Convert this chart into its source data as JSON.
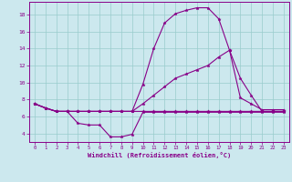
{
  "xlabel": "Windchill (Refroidissement éolien,°C)",
  "background_color": "#cce8ee",
  "line_color": "#880088",
  "grid_color": "#99cccc",
  "xlim": [
    -0.5,
    23.5
  ],
  "ylim": [
    3.0,
    19.5
  ],
  "xticks": [
    0,
    1,
    2,
    3,
    4,
    5,
    6,
    7,
    8,
    9,
    10,
    11,
    12,
    13,
    14,
    15,
    16,
    17,
    18,
    19,
    20,
    21,
    22,
    23
  ],
  "yticks": [
    4,
    6,
    8,
    10,
    12,
    14,
    16,
    18
  ],
  "lines": [
    {
      "x": [
        0,
        1,
        2,
        3,
        4,
        5,
        6,
        7,
        8,
        9,
        10,
        11,
        12,
        13,
        14,
        15,
        16,
        17,
        18,
        19,
        20,
        21,
        22,
        23
      ],
      "y": [
        7.5,
        7.0,
        6.6,
        6.6,
        5.2,
        5.0,
        5.0,
        3.6,
        3.6,
        3.9,
        6.5,
        6.5,
        6.5,
        6.5,
        6.5,
        6.5,
        6.5,
        6.5,
        6.5,
        6.5,
        6.5,
        6.5,
        6.5,
        6.5
      ]
    },
    {
      "x": [
        0,
        1,
        2,
        3,
        4,
        5,
        6,
        7,
        8,
        9,
        10,
        11,
        12,
        13,
        14,
        15,
        16,
        17,
        18,
        19,
        20,
        21,
        22,
        23
      ],
      "y": [
        7.5,
        7.0,
        6.6,
        6.6,
        6.6,
        6.6,
        6.6,
        6.6,
        6.6,
        6.6,
        6.6,
        6.6,
        6.6,
        6.6,
        6.6,
        6.6,
        6.6,
        6.6,
        6.6,
        6.6,
        6.6,
        6.6,
        6.6,
        6.6
      ]
    },
    {
      "x": [
        0,
        1,
        2,
        3,
        4,
        5,
        6,
        7,
        8,
        9,
        10,
        11,
        12,
        13,
        14,
        15,
        16,
        17,
        18,
        19,
        20,
        21,
        22,
        23
      ],
      "y": [
        7.5,
        7.0,
        6.6,
        6.6,
        6.6,
        6.6,
        6.6,
        6.6,
        6.6,
        6.6,
        7.5,
        8.5,
        9.5,
        10.5,
        11.0,
        11.5,
        12.0,
        13.0,
        13.8,
        8.2,
        7.5,
        6.8,
        6.8,
        6.8
      ]
    },
    {
      "x": [
        0,
        1,
        2,
        3,
        4,
        5,
        6,
        7,
        8,
        9,
        10,
        11,
        12,
        13,
        14,
        15,
        16,
        17,
        18,
        19,
        20,
        21,
        22,
        23
      ],
      "y": [
        7.5,
        7.0,
        6.6,
        6.6,
        6.6,
        6.6,
        6.6,
        6.6,
        6.6,
        6.6,
        9.8,
        14.0,
        17.0,
        18.1,
        18.5,
        18.8,
        18.8,
        17.5,
        13.8,
        10.5,
        8.5,
        6.6,
        6.6,
        6.6
      ]
    }
  ]
}
